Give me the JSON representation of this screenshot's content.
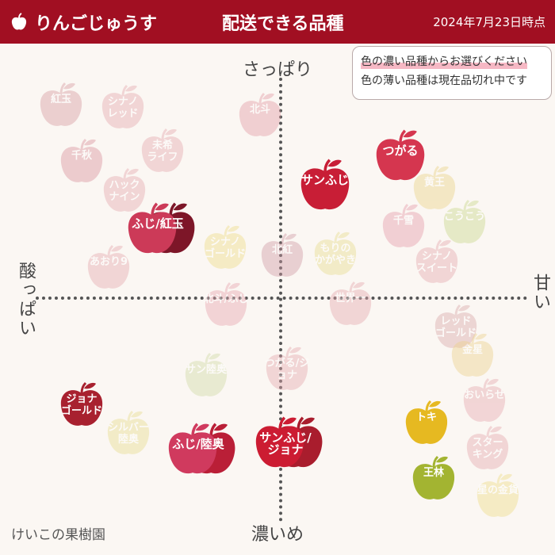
{
  "header": {
    "brand": "りんごじゅうす",
    "subtitle": "配送できる品種",
    "date": "2024年7月23日時点",
    "bg": "#a10f22"
  },
  "legend": {
    "line1": "色の濃い品種からお選びください",
    "line2": "色の薄い品種は現在品切れ中です"
  },
  "axes": {
    "top": "さっぱり",
    "bottom": "濃いめ",
    "left": "酸っぱい",
    "right": "甘い"
  },
  "footer": "けいこの果樹園",
  "apples": {
    "koudama": {
      "label": "紅玉",
      "color": "#d79aa0",
      "faded": true
    },
    "shinano_red": {
      "label": "シナノ\nレッド",
      "color": "#e5a7ad",
      "faded": true
    },
    "hokuto": {
      "label": "北斗",
      "color": "#e19aa3",
      "faded": true
    },
    "chiaki": {
      "label": "千秋",
      "color": "#d8909b",
      "faded": true
    },
    "mikiraifu": {
      "label": "未希\nライフ",
      "color": "#e5a7ad",
      "faded": true
    },
    "hakku_nain": {
      "label": "ハック\nナイン",
      "color": "#e5a7ad",
      "faded": true
    },
    "fuji_koudama": {
      "label": "ふじ/紅玉",
      "color": "#cc3a58",
      "color2": "#7d1628",
      "faded": false
    },
    "sanfuji_top": {
      "label": "サンふじ",
      "color": "#c81e36",
      "faded": false
    },
    "tsugaru": {
      "label": "つがる",
      "color": "#d5364f",
      "faded": false
    },
    "kiou": {
      "label": "黄王",
      "color": "#e9d284",
      "faded": true
    },
    "kotoku": {
      "label": "こうこう",
      "color": "#c9d889",
      "faded": true
    },
    "senyuki": {
      "label": "千雪",
      "color": "#e59aa8",
      "faded": true
    },
    "shinano_gold": {
      "label": "シナノ\nゴールド",
      "color": "#eedc85",
      "faded": true
    },
    "morino_kagayaki": {
      "label": "もりの\nかがやき",
      "color": "#e6dc8d",
      "faded": true
    },
    "hokkou": {
      "label": "北紅",
      "color": "#d09aa4",
      "faded": true
    },
    "shinano_sweet": {
      "label": "シナノ\nスイート",
      "color": "#e5a7ad",
      "faded": true
    },
    "aori9": {
      "label": "あおり9",
      "color": "#e5a7ad",
      "faded": true
    },
    "hokuto_fuji": {
      "label": "北斗/ふじ",
      "color": "#e7a4ad",
      "faded": true
    },
    "sekaiichi": {
      "label": "世界一",
      "color": "#e5a7ad",
      "faded": true
    },
    "red_gold": {
      "label": "レッド\nゴールド",
      "color": "#d9a7a9",
      "faded": true
    },
    "kinsei": {
      "label": "金星",
      "color": "#ecd189",
      "faded": true
    },
    "sun_mutsu": {
      "label": "サン陸奥",
      "color": "#cfd9a4",
      "faded": true
    },
    "tsugaru_jonagold": {
      "label": "つがる/ジョナ",
      "color": "#e5a7ad",
      "faded": true
    },
    "oirase": {
      "label": "おいらせ",
      "color": "#e5a7ad",
      "faded": true
    },
    "jonagold": {
      "label": "ジョナ\nゴールド",
      "color": "#a8212f",
      "faded": false
    },
    "silver_mutsu": {
      "label": "シルバー\n陸奥",
      "color": "#e6dc8d",
      "faded": true
    },
    "fuji_mutsu": {
      "label": "ふじ/陸奥",
      "color": "#d03a5e",
      "color2": "#ba1f37",
      "faded": false
    },
    "sanfuji_jona": {
      "label": "サンふじ/\nジョナ",
      "color": "#cc1c32",
      "color2": "#a91d2d",
      "faded": false
    },
    "toki": {
      "label": "トキ",
      "color": "#e6b921",
      "faded": false
    },
    "star_king": {
      "label": "スター\nキング",
      "color": "#e5a7ad",
      "faded": true
    },
    "ourin": {
      "label": "王林",
      "color": "#a3b431",
      "faded": false
    },
    "hoshino_kinka": {
      "label": "星の金貨",
      "color": "#eddc84",
      "faded": true
    }
  }
}
